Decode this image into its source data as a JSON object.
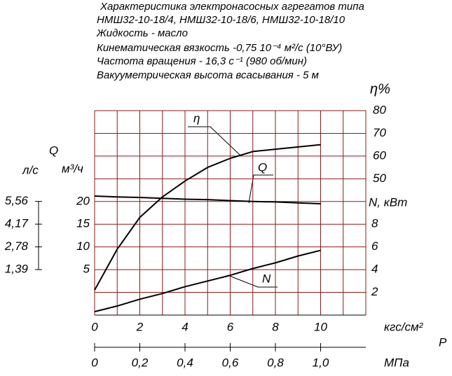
{
  "header": [
    "Характеристика электронасосных агрегатов типа",
    "НМШ32-10-18/4, НМШ32-10-18/6, НМШ32-10-18/10",
    "Жидкость - масло",
    "Кинематическая вязкость -0,75 10⁻⁴ м²/с (10°ВУ)",
    "Частота вращения - 16,3 с⁻¹ (980 об/мин)",
    "Вакууметрическая высота всасывания - 5 м"
  ],
  "chart_data": {
    "type": "line",
    "x": [
      0,
      1,
      2,
      3,
      4,
      5,
      6,
      7,
      8,
      9,
      10
    ],
    "xlim": [
      0,
      12
    ],
    "xticks": [
      0,
      2,
      4,
      6,
      8,
      10
    ],
    "xlabel": "кгс/см²",
    "x_title": "P",
    "x2lim": [
      0,
      1.2
    ],
    "x2ticks": [
      0,
      {
        "value": 0.2,
        "label": "0,2"
      },
      {
        "value": 0.4,
        "label": "0,4"
      },
      {
        "value": 0.6,
        "label": "0,6"
      },
      {
        "value": 0.8,
        "label": "0,8"
      },
      {
        "value": 1.0,
        "label": "1,0"
      }
    ],
    "x2label": "МПа",
    "ylim": [
      -5,
      40
    ],
    "yticks": [
      5,
      10,
      15,
      20
    ],
    "ylabel": "м³/ч",
    "y_title": "Q",
    "y2lim": [
      -10,
      80
    ],
    "y2ticks": [
      50,
      60,
      70,
      80
    ],
    "y2label": "η%",
    "y3lim": [
      0,
      18
    ],
    "y3ticks": [
      2,
      4,
      6,
      8
    ],
    "y3label": "N, кВт",
    "y4lim": [
      -1.39,
      11.11
    ],
    "y4ticks": [
      {
        "value": 1.39,
        "label": "1,39"
      },
      {
        "value": 2.78,
        "label": "2,78"
      },
      {
        "value": 4.17,
        "label": "4,17"
      },
      {
        "value": 5.56,
        "label": "5,56"
      }
    ],
    "y4label": "л/с",
    "grid": true,
    "series": [
      {
        "name": "η",
        "axis": "y2",
        "color": "#000000",
        "values": [
          1,
          19,
          33,
          42,
          49,
          55,
          59,
          62,
          63,
          64,
          65
        ]
      },
      {
        "name": "Q",
        "axis": "y",
        "color": "#000000",
        "values": [
          21.2,
          21.0,
          20.9,
          20.7,
          20.5,
          20.4,
          20.2,
          20.0,
          19.9,
          19.7,
          19.5
        ]
      },
      {
        "name": "N",
        "axis": "y3",
        "color": "#000000",
        "values": [
          0.3,
          0.8,
          1.4,
          1.9,
          2.5,
          3.0,
          3.5,
          4.1,
          4.6,
          5.2,
          5.7
        ]
      }
    ]
  }
}
